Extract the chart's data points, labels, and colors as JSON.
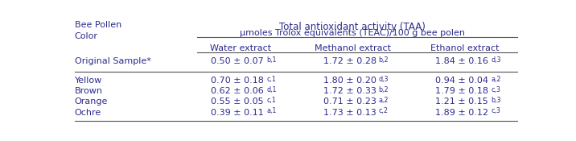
{
  "title_line1": "Total antioxidant activity (TAA)",
  "title_line2": "μmoles Trolox equivalents (TEAC)/100 g bee polen",
  "col_header_left": "Bee Pollen\nColor",
  "col_headers": [
    "Water extract",
    "Methanol extract",
    "Ethanol extract"
  ],
  "rows": [
    {
      "label": "Original Sample*",
      "values": [
        "0.50 ± 0.07",
        "b,1",
        "1.72 ± 0.28",
        "b,2",
        "1.84 ± 0.16",
        "d,3"
      ]
    },
    {
      "label": "Yellow",
      "values": [
        "0.70 ± 0.18",
        "c,1",
        "1.80 ± 0.20",
        "d,3",
        "0.94 ± 0.04",
        "a,2"
      ]
    },
    {
      "label": "Brown",
      "values": [
        "0.62 ± 0.06",
        "d,1",
        "1.72 ± 0.33",
        "b,2",
        "1.79 ± 0.18",
        "c,3"
      ]
    },
    {
      "label": "Orange",
      "values": [
        "0.55 ± 0.05",
        "c,1",
        "0.71 ± 0.23",
        "a,2",
        "1.21 ± 0.15",
        "b,3"
      ]
    },
    {
      "label": "Ochre",
      "values": [
        "0.39 ± 0.11",
        "a,1",
        "1.73 ± 0.13",
        "c,2",
        "1.89 ± 0.12",
        "c,3"
      ]
    }
  ],
  "text_color": "#2b2b8c",
  "line_color": "#555555",
  "bg_color": "#ffffff",
  "font_size": 8.0,
  "title_font_size": 8.5
}
